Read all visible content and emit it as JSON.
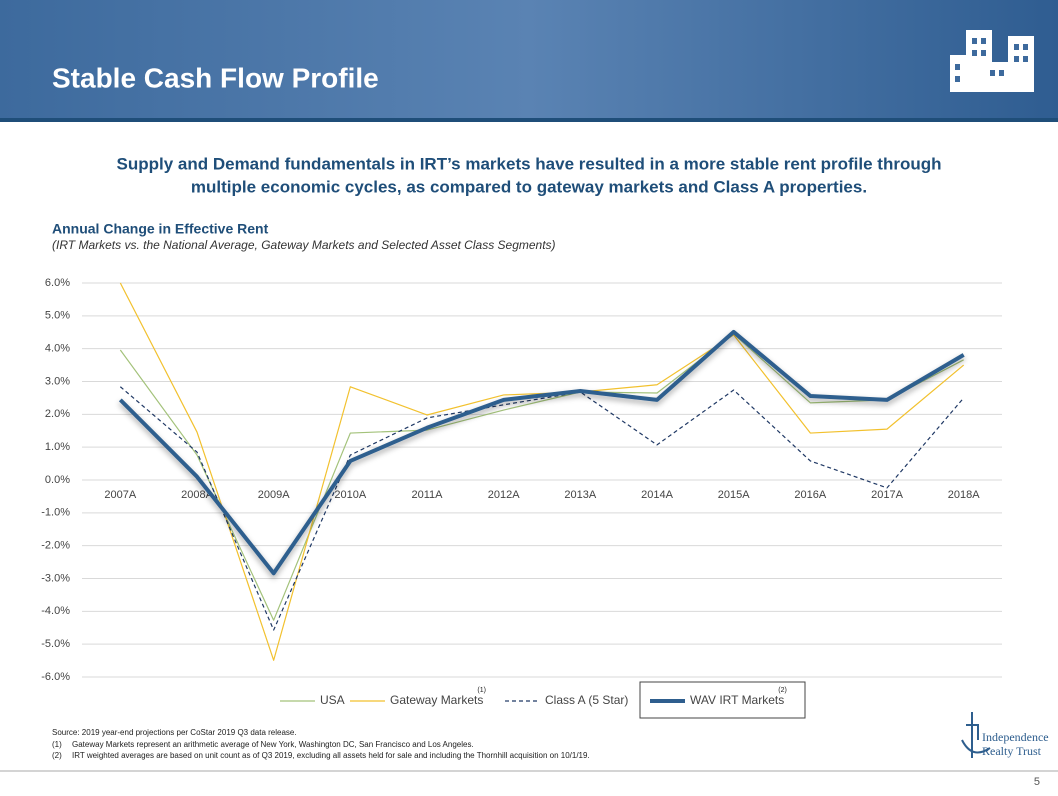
{
  "header": {
    "title": "Stable Cash Flow Profile"
  },
  "intro": [
    "Supply and Demand fundamentals in IRT’s markets have resulted in a more stable rent profile through",
    "multiple economic cycles, as compared to gateway markets and Class A properties."
  ],
  "chart_data": {
    "type": "line",
    "title": "Annual Change in Effective Rent",
    "subtitle": "(IRT Markets vs. the National Average, Gateway Markets and Selected Asset Class Segments)",
    "categories": [
      "2007A",
      "2008A",
      "2009A",
      "2010A",
      "2011A",
      "2012A",
      "2013A",
      "2014A",
      "2015A",
      "2016A",
      "2017A",
      "2018A"
    ],
    "series": [
      {
        "name": "USA",
        "color": "#a3c27a",
        "values": [
          3.96,
          0.76,
          -4.27,
          1.43,
          1.52,
          2.13,
          2.68,
          2.65,
          4.45,
          2.35,
          2.44,
          3.66
        ]
      },
      {
        "name": "Gateway Markets",
        "note": "(1)",
        "color": "#f2c12e",
        "values": [
          6.0,
          1.46,
          -5.49,
          2.84,
          1.98,
          2.59,
          2.68,
          2.9,
          4.42,
          1.43,
          1.55,
          3.5
        ]
      },
      {
        "name": "Class A (5 Star)",
        "color": "#1f3864",
        "dashed": true,
        "values": [
          2.84,
          0.85,
          -4.57,
          0.76,
          1.89,
          2.29,
          2.68,
          1.07,
          2.74,
          0.58,
          -0.24,
          2.5
        ]
      },
      {
        "name": "WAV IRT Markets",
        "note": "(2)",
        "color": "#2e5e8e",
        "bold": true,
        "values": [
          2.44,
          0.1,
          -2.84,
          0.58,
          1.59,
          2.44,
          2.71,
          2.44,
          4.51,
          2.56,
          2.44,
          3.81
        ]
      }
    ],
    "ylim": [
      -6,
      6
    ],
    "yticks": [
      {
        "value": 6,
        "label": "6.0%"
      },
      {
        "value": 5,
        "label": "5.0%"
      },
      {
        "value": 4,
        "label": "4.0%"
      },
      {
        "value": 3,
        "label": "3.0%"
      },
      {
        "value": 2,
        "label": "2.0%"
      },
      {
        "value": 1,
        "label": "1.0%"
      },
      {
        "value": 0,
        "label": "0.0%"
      },
      {
        "value": -1,
        "label": "-1.0%"
      },
      {
        "value": -2,
        "label": "-2.0%"
      },
      {
        "value": -3,
        "label": "-3.0%"
      },
      {
        "value": -4,
        "label": "-4.0%"
      },
      {
        "value": -5,
        "label": "-5.0%"
      },
      {
        "value": -6,
        "label": "-6.0%"
      }
    ],
    "grid": true
  },
  "footnotes": {
    "source": "Source: 2019 year-end projections per CoStar 2019 Q3 data release.",
    "notes": [
      [
        "(1)",
        "Gateway Markets represent an arithmetic average of New York, Washington DC, San Francisco and Los Angeles."
      ],
      [
        "(2)",
        "IRT weighted averages are based on unit count as of Q3 2019, excluding all assets held for sale and including the Thornhill acquisition on 10/1/19."
      ]
    ]
  },
  "logo": [
    "Independence",
    "Realty Trust"
  ],
  "page_number": "5"
}
